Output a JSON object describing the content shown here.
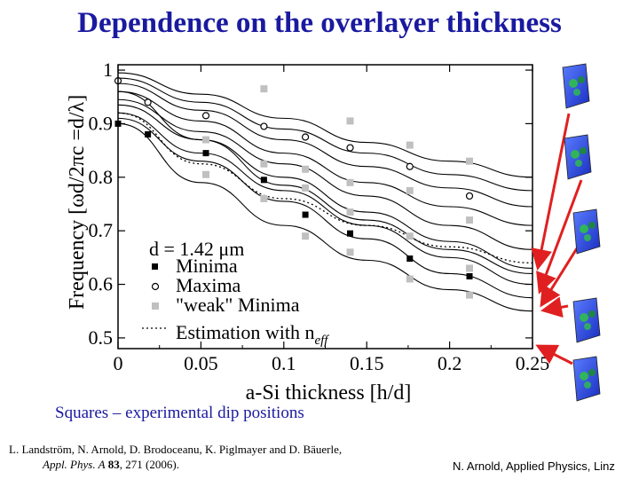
{
  "slide": {
    "title": "Dependence on the overlayer thickness",
    "note": "Squares – experimental dip positions",
    "reference_line1": "L. Landström, N. Arnold, D. Brodoceanu, K. Piglmayer and D. Bäuerle,",
    "reference_journal": "Appl. Phys. A",
    "reference_volume": "83",
    "reference_pages": ", 271 (2006).",
    "credit": "N. Arnold, Applied Physics, Linz"
  },
  "chart_data": {
    "type": "scatter",
    "xlabel": "a-Si thickness [h/d]",
    "ylabel": "Frequency [ωd/2πc =d/λ]",
    "xlim": [
      0,
      0.25
    ],
    "ylim": [
      0.48,
      1.01
    ],
    "xticks": [
      "0",
      "0.05",
      "0.1",
      "0.15",
      "0.2",
      "0.25"
    ],
    "yticks": [
      "0.5",
      "0.6",
      "0.7",
      "0.8",
      "0.9",
      "1"
    ],
    "legend_title": "d = 1.42 μm",
    "legend_entries": [
      "Minima",
      "Maxima",
      "\"weak\" Minima"
    ],
    "estimation_label": "Estimation with n",
    "estimation_subscript": "eff",
    "colors": {
      "minima": "#000000",
      "maxima": "#000000",
      "weak": "#c0c0c0",
      "arrow": "#e02020"
    },
    "series": [
      {
        "name": "Minima",
        "marker": "square-filled",
        "points": [
          [
            0,
            0.9
          ],
          [
            0.018,
            0.88
          ],
          [
            0.053,
            0.845
          ],
          [
            0.088,
            0.795
          ],
          [
            0.113,
            0.73
          ],
          [
            0.14,
            0.695
          ],
          [
            0.176,
            0.648
          ],
          [
            0.212,
            0.615
          ]
        ]
      },
      {
        "name": "Maxima",
        "marker": "circle-open",
        "points": [
          [
            0,
            0.98
          ],
          [
            0.018,
            0.94
          ],
          [
            0.053,
            0.915
          ],
          [
            0.088,
            0.895
          ],
          [
            0.113,
            0.875
          ],
          [
            0.14,
            0.855
          ],
          [
            0.176,
            0.82
          ],
          [
            0.212,
            0.765
          ]
        ]
      },
      {
        "name": "\"weak\" Minima",
        "marker": "square-gray",
        "points": [
          [
            0.053,
            0.87
          ],
          [
            0.053,
            0.805
          ],
          [
            0.088,
            0.965
          ],
          [
            0.088,
            0.825
          ],
          [
            0.088,
            0.76
          ],
          [
            0.113,
            0.815
          ],
          [
            0.113,
            0.78
          ],
          [
            0.113,
            0.69
          ],
          [
            0.14,
            0.905
          ],
          [
            0.14,
            0.79
          ],
          [
            0.14,
            0.735
          ],
          [
            0.14,
            0.66
          ],
          [
            0.176,
            0.86
          ],
          [
            0.176,
            0.775
          ],
          [
            0.176,
            0.69
          ],
          [
            0.176,
            0.61
          ],
          [
            0.212,
            0.83
          ],
          [
            0.212,
            0.72
          ],
          [
            0.212,
            0.63
          ],
          [
            0.212,
            0.58
          ]
        ]
      }
    ],
    "theory_curves": [
      [
        [
          0,
          0.995
        ],
        [
          0.05,
          0.955
        ],
        [
          0.1,
          0.91
        ],
        [
          0.15,
          0.865
        ],
        [
          0.2,
          0.83
        ],
        [
          0.25,
          0.8
        ]
      ],
      [
        [
          0,
          0.985
        ],
        [
          0.05,
          0.94
        ],
        [
          0.1,
          0.89
        ],
        [
          0.15,
          0.845
        ],
        [
          0.2,
          0.805
        ],
        [
          0.25,
          0.775
        ]
      ],
      [
        [
          0,
          0.975
        ],
        [
          0.05,
          0.925
        ],
        [
          0.1,
          0.87
        ],
        [
          0.15,
          0.82
        ],
        [
          0.2,
          0.78
        ],
        [
          0.25,
          0.745
        ]
      ],
      [
        [
          0,
          0.96
        ],
        [
          0.05,
          0.905
        ],
        [
          0.1,
          0.845
        ],
        [
          0.15,
          0.79
        ],
        [
          0.2,
          0.745
        ],
        [
          0.25,
          0.71
        ]
      ],
      [
        [
          0,
          0.945
        ],
        [
          0.05,
          0.885
        ],
        [
          0.1,
          0.825
        ],
        [
          0.15,
          0.765
        ],
        [
          0.2,
          0.71
        ],
        [
          0.25,
          0.665
        ]
      ],
      [
        [
          0,
          0.935
        ],
        [
          0.05,
          0.87
        ],
        [
          0.1,
          0.8
        ],
        [
          0.15,
          0.735
        ],
        [
          0.2,
          0.68
        ],
        [
          0.25,
          0.63
        ]
      ],
      [
        [
          0,
          0.92
        ],
        [
          0.05,
          0.845
        ],
        [
          0.1,
          0.775
        ],
        [
          0.15,
          0.71
        ],
        [
          0.2,
          0.65
        ],
        [
          0.25,
          0.6
        ]
      ],
      [
        [
          0,
          0.91
        ],
        [
          0.05,
          0.83
        ],
        [
          0.1,
          0.755
        ],
        [
          0.15,
          0.685
        ],
        [
          0.2,
          0.62
        ],
        [
          0.25,
          0.575
        ]
      ],
      [
        [
          0,
          0.96
        ],
        [
          0.05,
          0.87
        ],
        [
          0.1,
          0.785
        ],
        [
          0.15,
          0.72
        ],
        [
          0.2,
          0.665
        ],
        [
          0.25,
          0.62
        ]
      ],
      [
        [
          0,
          0.9
        ],
        [
          0.05,
          0.79
        ],
        [
          0.1,
          0.71
        ],
        [
          0.15,
          0.645
        ],
        [
          0.2,
          0.59
        ],
        [
          0.25,
          0.55
        ]
      ]
    ],
    "estimation_curve": [
      [
        0,
        0.92
      ],
      [
        0.05,
        0.825
      ],
      [
        0.1,
        0.76
      ],
      [
        0.15,
        0.71
      ],
      [
        0.2,
        0.67
      ],
      [
        0.25,
        0.64
      ]
    ]
  }
}
